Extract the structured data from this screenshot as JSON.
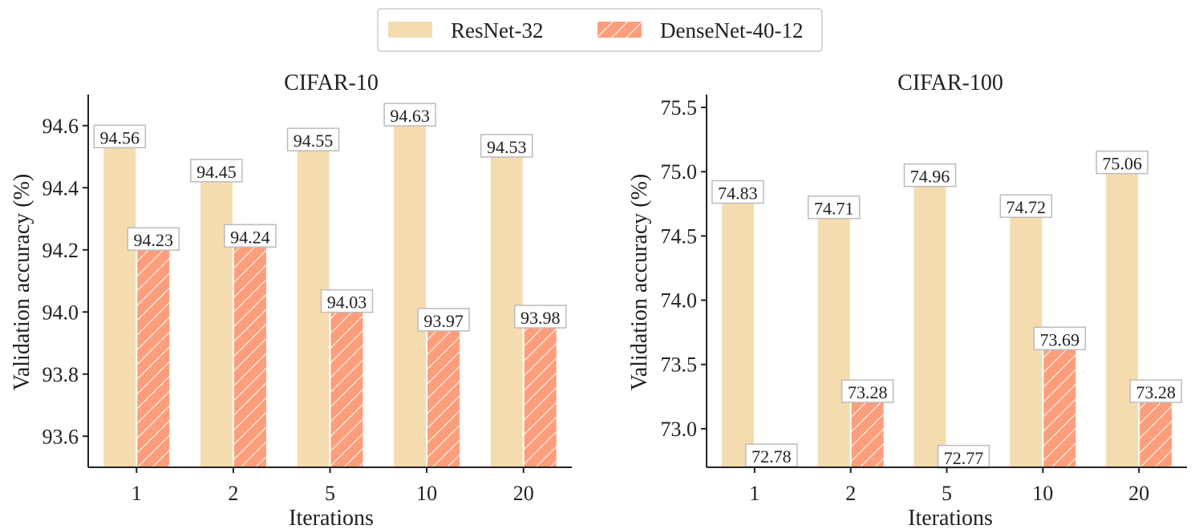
{
  "legend": {
    "items": [
      {
        "label": "ResNet-32",
        "color": "#f5dcb0",
        "hatch": false
      },
      {
        "label": "DenseNet-40-12",
        "color": "#fc9e7c",
        "hatch": true
      }
    ]
  },
  "chart_data": [
    {
      "type": "bar",
      "title": "CIFAR-10",
      "xlabel": "Iterations",
      "ylabel": "Validation accuracy (%)",
      "categories": [
        "1",
        "2",
        "5",
        "10",
        "20"
      ],
      "series": [
        {
          "name": "ResNet-32",
          "values": [
            94.56,
            94.45,
            94.55,
            94.63,
            94.53
          ],
          "labels": [
            "94.56",
            "94.45",
            "94.55",
            "94.63",
            "94.53"
          ]
        },
        {
          "name": "DenseNet-40-12",
          "values": [
            94.23,
            94.24,
            94.03,
            93.97,
            93.98
          ],
          "labels": [
            "94.23",
            "94.24",
            "94.03",
            "93.97",
            "93.98"
          ]
        }
      ],
      "ylim": [
        93.5,
        94.7
      ],
      "yticks": [
        93.6,
        93.8,
        94.0,
        94.2,
        94.4,
        94.6
      ],
      "ytick_labels": [
        "93.6",
        "93.8",
        "94.0",
        "94.2",
        "94.4",
        "94.6"
      ]
    },
    {
      "type": "bar",
      "title": "CIFAR-100",
      "xlabel": "Iterations",
      "ylabel": "Validation accuracy (%)",
      "categories": [
        "1",
        "2",
        "5",
        "10",
        "20"
      ],
      "series": [
        {
          "name": "ResNet-32",
          "values": [
            74.83,
            74.71,
            74.96,
            74.72,
            75.06
          ],
          "labels": [
            "74.83",
            "74.71",
            "74.96",
            "74.72",
            "75.06"
          ]
        },
        {
          "name": "DenseNet-40-12",
          "values": [
            72.78,
            73.28,
            72.77,
            73.69,
            73.28
          ],
          "labels": [
            "72.78",
            "73.28",
            "72.77",
            "73.69",
            "73.28"
          ]
        }
      ],
      "ylim": [
        72.7,
        75.6
      ],
      "yticks": [
        73.0,
        73.5,
        74.0,
        74.5,
        75.0,
        75.5
      ],
      "ytick_labels": [
        "73.0",
        "73.5",
        "74.0",
        "74.5",
        "75.0",
        "75.5"
      ]
    }
  ]
}
